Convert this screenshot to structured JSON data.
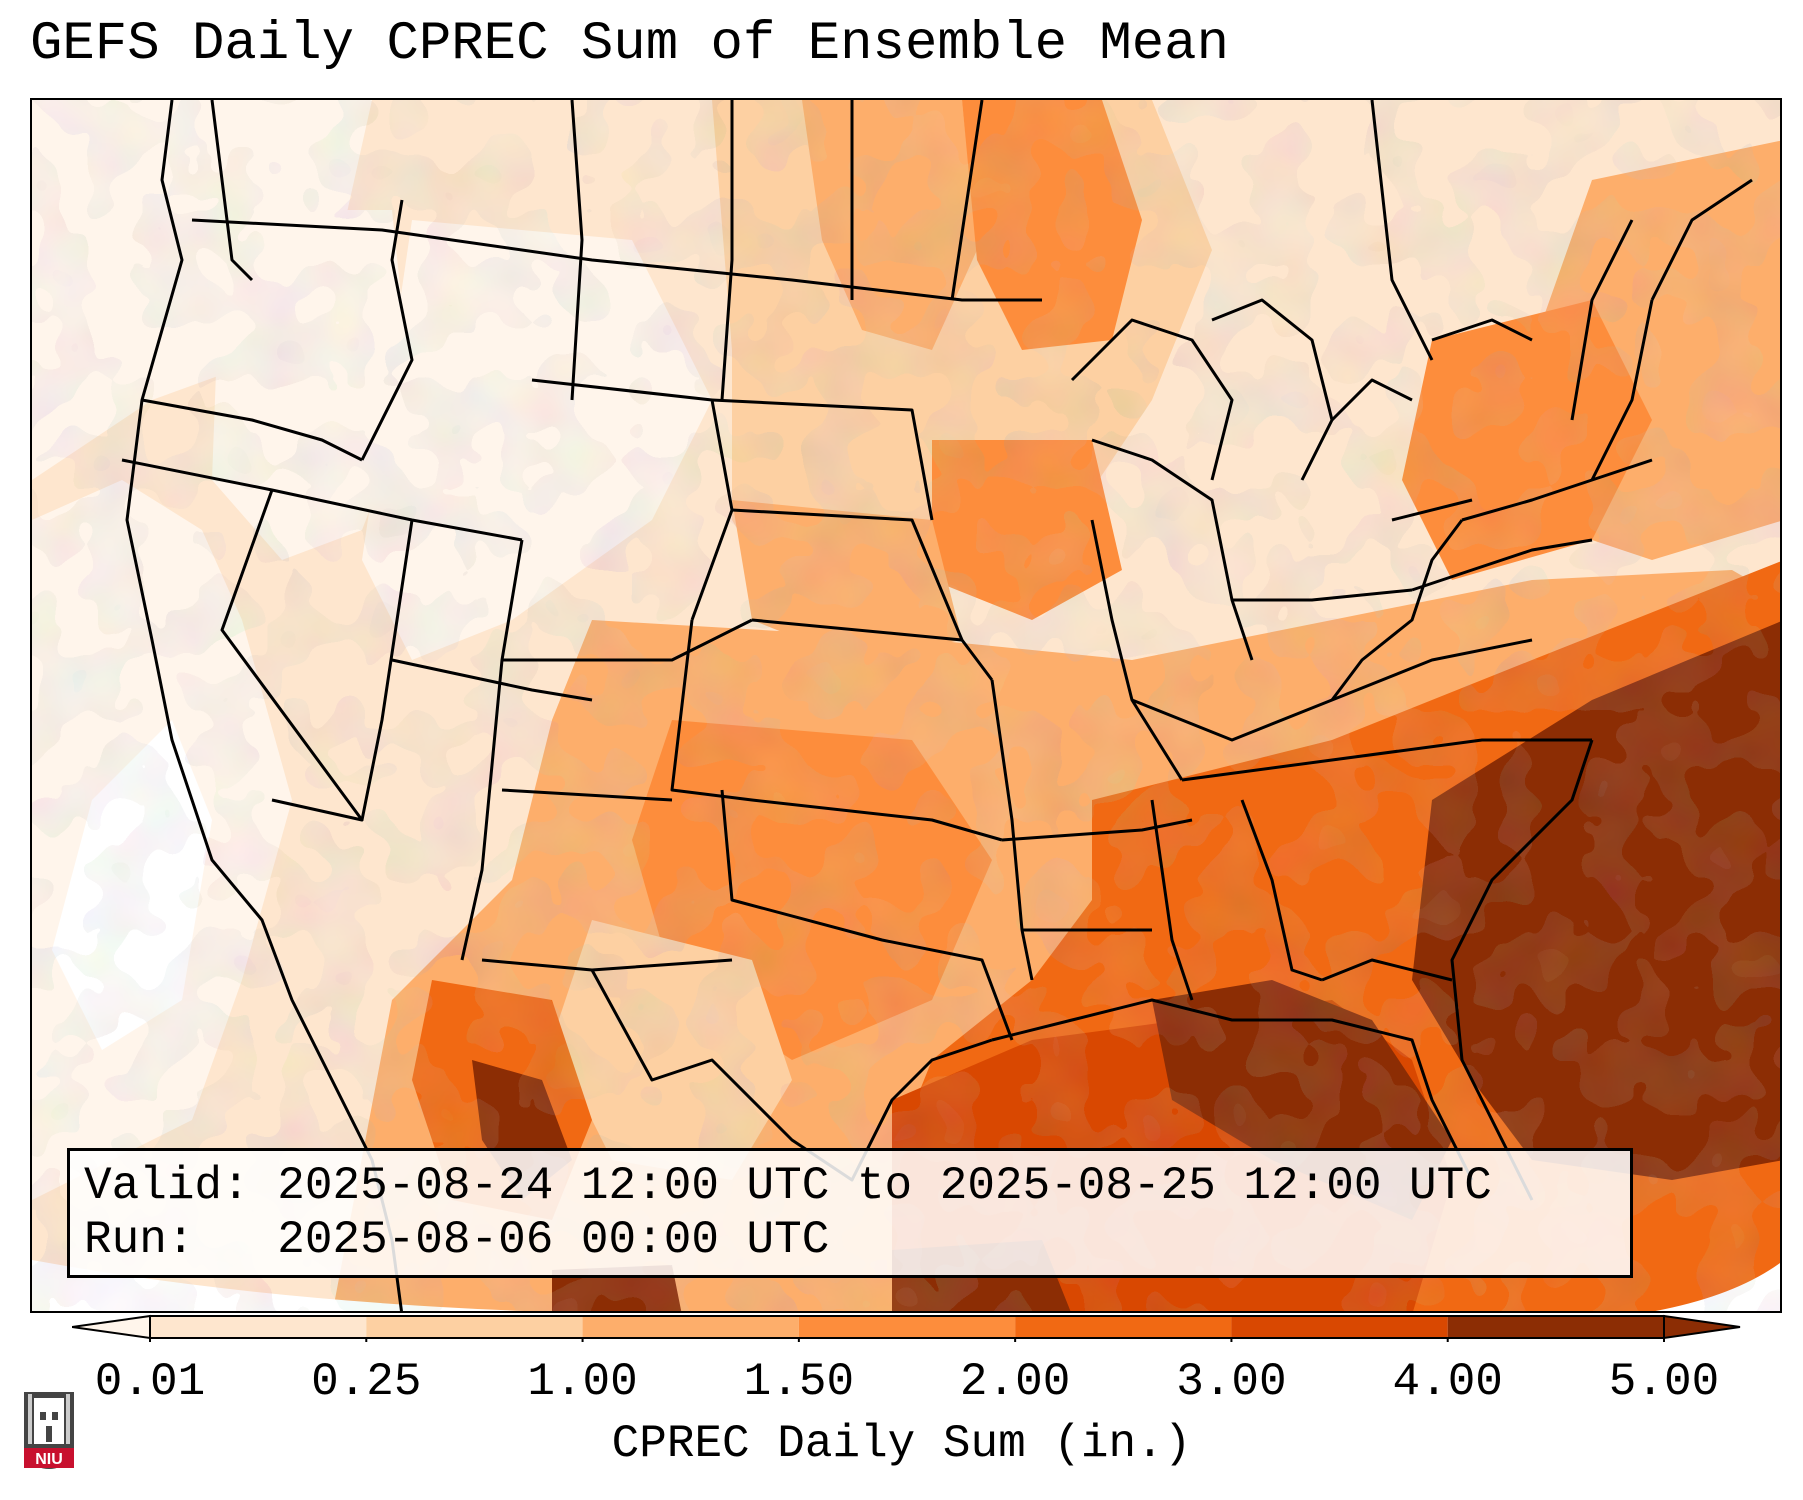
{
  "title": "GEFS Daily CPREC Sum of Ensemble Mean",
  "info": {
    "valid_label": "Valid:",
    "valid_value": "2025-08-24 12:00 UTC to 2025-08-25 12:00 UTC",
    "run_label": "Run:",
    "run_value": "2025-08-06 00:00 UTC"
  },
  "colorbar": {
    "label": "CPREC Daily Sum (in.)",
    "ticks": [
      "0.01",
      "0.25",
      "1.00",
      "1.50",
      "2.00",
      "3.00",
      "4.00",
      "5.00"
    ],
    "colors": [
      "#fff5eb",
      "#fee6ce",
      "#fdd0a2",
      "#fdae6b",
      "#fd8d3c",
      "#f16913",
      "#d94801",
      "#8c2d04"
    ],
    "extend": "both"
  },
  "logo": {
    "text": "NIU",
    "colors": {
      "shield": "#444444",
      "band": "#c8102e"
    }
  },
  "map": {
    "region": "Contiguous United States",
    "coastline_color": "#000000",
    "field_description": "Heavy convective precipitation along Southeast coast and Gulf; moderate over central and eastern US; light in the West"
  }
}
